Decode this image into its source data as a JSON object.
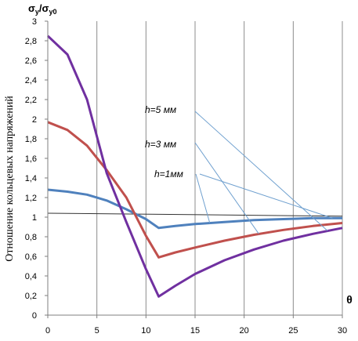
{
  "chart_data": {
    "type": "line",
    "title": "",
    "ylabel_main": "σ",
    "ylabel_sub": "y",
    "ylabel_div": "/σ",
    "ylabel_sub0": "y0",
    "ylabel_side": "Отношение кольцевых напряжений",
    "xlabel": "θ",
    "xlim": [
      0,
      30
    ],
    "ylim": [
      0,
      3
    ],
    "xticks": [
      0,
      5,
      10,
      15,
      20,
      25,
      30
    ],
    "yticks": [
      0,
      0.2,
      0.4,
      0.6,
      0.8,
      1,
      1.2,
      1.4,
      1.6,
      1.8,
      2,
      2.2,
      2.4,
      2.6,
      2.8,
      3
    ],
    "xtick_labels": [
      "0",
      "5",
      "10",
      "15",
      "20",
      "25",
      "30"
    ],
    "ytick_labels": [
      "0",
      "0,2",
      "0,4",
      "0,6",
      "0,8",
      "1",
      "1,2",
      "1,4",
      "1,6",
      "1,8",
      "2",
      "2,2",
      "2,4",
      "2,6",
      "2,8",
      "3"
    ],
    "grid": "vertical",
    "reference_line": {
      "y_start": 1.04,
      "y_end": 1.01,
      "color": "#333333"
    },
    "series": [
      {
        "name": "h=1мм",
        "color": "#4f81bd",
        "x": [
          0,
          2,
          4,
          6,
          8,
          10,
          11.3,
          13,
          15,
          18,
          21,
          24,
          27,
          30
        ],
        "y": [
          1.28,
          1.26,
          1.23,
          1.17,
          1.08,
          0.98,
          0.89,
          0.91,
          0.93,
          0.95,
          0.97,
          0.98,
          0.99,
          0.99
        ]
      },
      {
        "name": "h=3мм",
        "color": "#c0504d",
        "x": [
          0,
          2,
          4,
          6,
          8,
          10,
          11.3,
          13,
          15,
          18,
          21,
          24,
          27,
          30
        ],
        "y": [
          1.97,
          1.89,
          1.73,
          1.48,
          1.2,
          0.81,
          0.59,
          0.64,
          0.69,
          0.76,
          0.82,
          0.87,
          0.91,
          0.94
        ]
      },
      {
        "name": "h=5мм",
        "color": "#7030a0",
        "x": [
          0,
          2,
          4,
          6,
          8,
          10,
          11.3,
          13,
          15,
          18,
          21,
          24,
          27,
          30
        ],
        "y": [
          2.85,
          2.66,
          2.2,
          1.45,
          0.95,
          0.47,
          0.19,
          0.3,
          0.42,
          0.56,
          0.67,
          0.76,
          0.83,
          0.89
        ]
      }
    ],
    "annotations": [
      {
        "text": "h=5 мм",
        "target_series": "h=5мм",
        "target_x": 28.5
      },
      {
        "text": "h=3 мм",
        "target_series": "h=3мм",
        "target_x": 21.5
      },
      {
        "text": "h=1мм",
        "target_series": "h=1мм",
        "target_x": 16.5
      },
      {
        "text": "",
        "target_series": "h=1мм",
        "target_x": 29.0
      }
    ]
  }
}
